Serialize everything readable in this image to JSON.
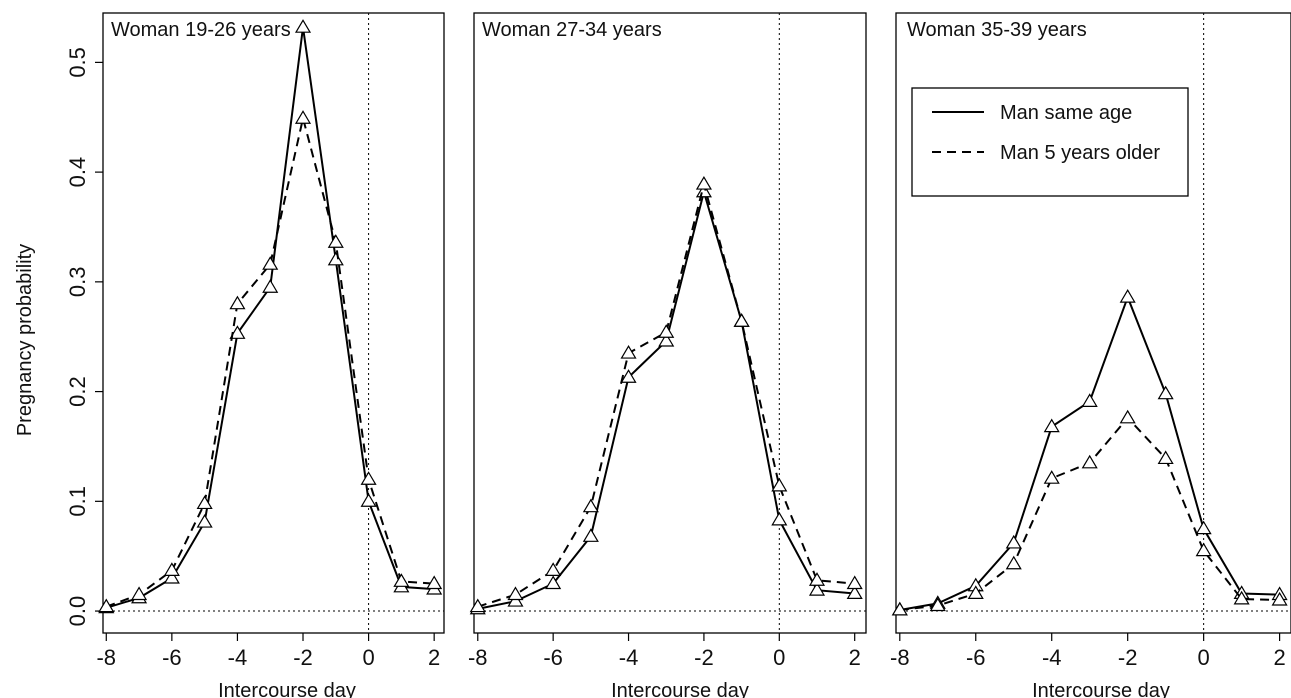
{
  "chart_data": [
    {
      "type": "line",
      "title": "Woman 19-26 years",
      "xlabel": "Intercourse day",
      "ylabel": "Pregnancy probability",
      "x": [
        -8,
        -7,
        -6,
        -5,
        -4,
        -3,
        -2,
        -1,
        0,
        1,
        2
      ],
      "xlim": [
        -8.1,
        2.3
      ],
      "ylim": [
        -0.02,
        0.545
      ],
      "xticks": [
        -8,
        -6,
        -4,
        -2,
        0,
        2
      ],
      "yticks": [
        0.0,
        0.1,
        0.2,
        0.3,
        0.4,
        0.5
      ],
      "ytick_labels": [
        "0.0",
        "0.1",
        "0.2",
        "0.3",
        "0.4",
        "0.5"
      ],
      "reference_lines": {
        "x": 0,
        "y": 0
      },
      "series": [
        {
          "name": "Man same age",
          "style": "solid",
          "values": [
            0.003,
            0.012,
            0.03,
            0.081,
            0.253,
            0.295,
            0.532,
            0.32,
            0.1,
            0.022,
            0.02
          ]
        },
        {
          "name": "Man 5 years older",
          "style": "dashed",
          "values": [
            0.004,
            0.015,
            0.037,
            0.098,
            0.28,
            0.316,
            0.449,
            0.336,
            0.12,
            0.027,
            0.025
          ]
        }
      ]
    },
    {
      "type": "line",
      "title": "Woman 27-34 years",
      "xlabel": "Intercourse day",
      "ylabel": "",
      "x": [
        -8,
        -7,
        -6,
        -5,
        -4,
        -3,
        -2,
        -1,
        0,
        1,
        2
      ],
      "xlim": [
        -8.1,
        2.3
      ],
      "ylim": [
        -0.02,
        0.545
      ],
      "xticks": [
        -8,
        -6,
        -4,
        -2,
        0,
        2
      ],
      "reference_lines": {
        "x": 0,
        "y": 0
      },
      "series": [
        {
          "name": "Man same age",
          "style": "solid",
          "values": [
            0.002,
            0.009,
            0.025,
            0.068,
            0.213,
            0.246,
            0.382,
            0.264,
            0.083,
            0.019,
            0.016
          ]
        },
        {
          "name": "Man 5 years older",
          "style": "dashed",
          "values": [
            0.004,
            0.015,
            0.037,
            0.095,
            0.235,
            0.254,
            0.389,
            0.264,
            0.114,
            0.028,
            0.025
          ]
        }
      ]
    },
    {
      "type": "line",
      "title": "Woman 35-39 years",
      "xlabel": "Intercourse day",
      "ylabel": "",
      "x": [
        -8,
        -7,
        -6,
        -5,
        -4,
        -3,
        -2,
        -1,
        0,
        1,
        2
      ],
      "xlim": [
        -8.1,
        2.3
      ],
      "ylim": [
        -0.02,
        0.545
      ],
      "xticks": [
        -8,
        -6,
        -4,
        -2,
        0,
        2
      ],
      "reference_lines": {
        "x": 0,
        "y": 0
      },
      "legend": {
        "position": "top-left",
        "entries": [
          {
            "label": "Man same age",
            "style": "solid"
          },
          {
            "label": "Man 5 years older",
            "style": "dashed"
          }
        ]
      },
      "series": [
        {
          "name": "Man same age",
          "style": "solid",
          "values": [
            0.001,
            0.007,
            0.023,
            0.062,
            0.168,
            0.191,
            0.286,
            0.198,
            0.075,
            0.016,
            0.015
          ]
        },
        {
          "name": "Man 5 years older",
          "style": "dashed",
          "values": [
            0.001,
            0.005,
            0.016,
            0.043,
            0.121,
            0.135,
            0.176,
            0.139,
            0.055,
            0.011,
            0.01
          ]
        }
      ]
    }
  ]
}
